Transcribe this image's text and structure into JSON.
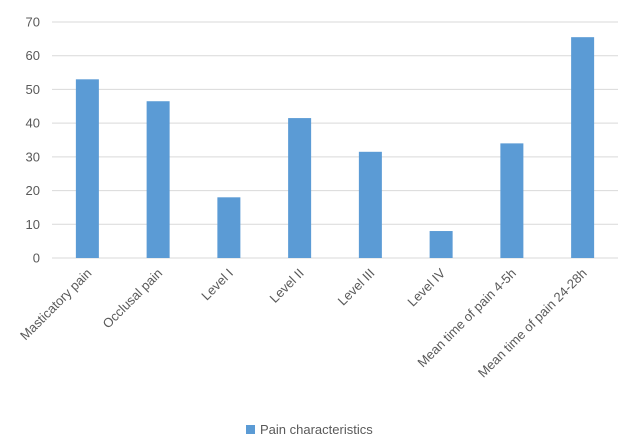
{
  "chart_data": {
    "type": "bar",
    "categories": [
      "Masticatory pain",
      "Occlusal pain",
      "Level I",
      "Level II",
      "Level III",
      "Level IV",
      "Mean time of pain 4-5h",
      "Mean time of pain 24-28h"
    ],
    "series": [
      {
        "name": "Pain characteristics",
        "values": [
          53,
          46.5,
          18,
          41.5,
          31.5,
          8,
          34,
          65.5
        ],
        "color": "#5b9bd5"
      }
    ],
    "title": "",
    "xlabel": "",
    "ylabel": "",
    "ylim": [
      0,
      70
    ],
    "yticks": [
      0,
      10,
      20,
      30,
      40,
      50,
      60,
      70
    ],
    "grid": true,
    "legend": "bottom"
  }
}
